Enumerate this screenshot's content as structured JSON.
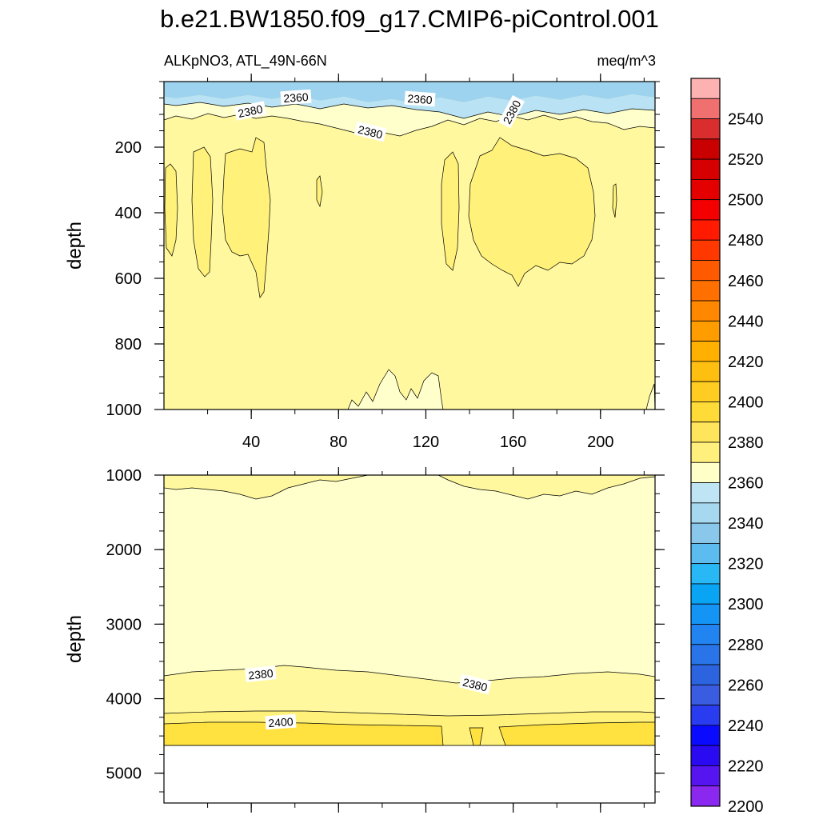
{
  "title": "b.e21.BW1850.f09_g17.CMIP6-piControl.001",
  "chart_data": {
    "type": "contour",
    "variable": "ALKpNO3, ATL_49N-66N",
    "units": "meq/m^3",
    "x_range": [
      0,
      225
    ],
    "x_ticks": [
      "40",
      "80",
      "120",
      "160",
      "200"
    ],
    "colors": {
      "line": "#000000",
      "c2360": "#b9e3f4",
      "c2370": "#ffffcc",
      "c2380": "#fff89e",
      "c2390": "#fff17a",
      "c2400": "#ffe23f",
      "blue1": "#9dd3ef",
      "blue2": "#7cc4ec"
    },
    "panels": [
      {
        "ylabel": "depth",
        "y_range": [
          0,
          1000
        ],
        "y_ticks": [
          "200",
          "400",
          "600",
          "800",
          "1000"
        ],
        "contour_labels": [
          "2360",
          "2360",
          "2380",
          "2380",
          "2380"
        ]
      },
      {
        "ylabel": "depth",
        "y_range": [
          1000,
          5400
        ],
        "y_ticks": [
          "1000",
          "2000",
          "3000",
          "4000",
          "5000"
        ],
        "contour_labels": [
          "2380",
          "2380",
          "2400"
        ]
      }
    ],
    "colorbar": {
      "labels": [
        "2540",
        "2520",
        "2500",
        "2480",
        "2460",
        "2440",
        "2420",
        "2400",
        "2380",
        "2360",
        "2340",
        "2320",
        "2300",
        "2280",
        "2260",
        "2240",
        "2220",
        "2200"
      ],
      "colors": [
        "#feb1b1",
        "#f07070",
        "#da2e2e",
        "#c80000",
        "#d70000",
        "#e50000",
        "#f50000",
        "#ff1a00",
        "#ff3800",
        "#ff5a00",
        "#ff7000",
        "#ff8800",
        "#ff9c00",
        "#ffb000",
        "#ffbf10",
        "#ffcc22",
        "#ffdb38",
        "#ffe55c",
        "#fff07e",
        "#ffffc8",
        "#bfe5f5",
        "#a6d8f0",
        "#89c8ea",
        "#5cbcf0",
        "#28b8f5",
        "#0aa4f5",
        "#1494f5",
        "#2284f0",
        "#2874e8",
        "#2c64e0",
        "#3a5ce0",
        "#2a3cf0",
        "#0a0aff",
        "#2a0af0",
        "#5514f0",
        "#8a28f0"
      ]
    }
  }
}
